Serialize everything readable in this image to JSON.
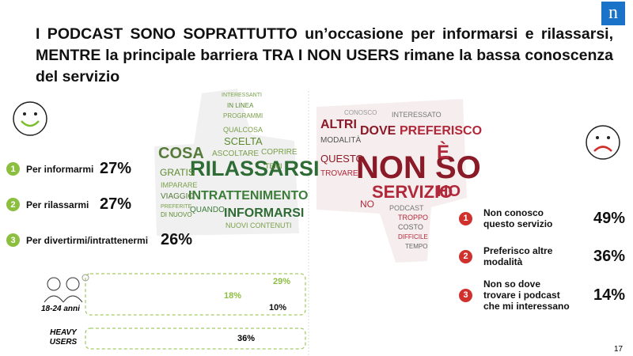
{
  "logo": "n",
  "title": "I PODCAST SONO SOPRATTUTTO un’occasione per informarsi e rilassarsi, MENTRE la principale barriera TRA I NON USERS rimane la bassa conoscenza del servizio",
  "reasons": [
    {
      "rank": "1",
      "label": "Per informarmi",
      "value": "27%"
    },
    {
      "rank": "2",
      "label": "Per rilassarmi",
      "value": "27%"
    },
    {
      "rank": "3",
      "label": "Per divertirmi/intrattenermi",
      "value": "26%"
    }
  ],
  "barriers": [
    {
      "rank": "1",
      "label": "Non conosco questo servizio",
      "value": "49%"
    },
    {
      "rank": "2",
      "label": "Preferisco altre modalità",
      "value": "36%"
    },
    {
      "rank": "3",
      "label": "Non so dove trovare i podcast che mi interessano",
      "value": "14%"
    }
  ],
  "age_box": {
    "label": "18-24 anni",
    "values": [
      "29%",
      "18%",
      "10%"
    ]
  },
  "heavy_box": {
    "label": "HEAVY USERS",
    "value": "36%"
  },
  "cloud_positive": [
    "RILASSARSI",
    "INTRATTENIMENTO",
    "INFORMARSI",
    "COSA",
    "GRATIS",
    "IMPARARE",
    "VIAGGIO",
    "PREFERITE",
    "DI NUOVO",
    "QUANDO",
    "NUOVI CONTENUTI",
    "SCELTA",
    "ASCOLTARE",
    "COPRIRE",
    "TEMI",
    "QUALCOSA",
    "IN LINEA",
    "PROGRAMMI",
    "INTERESSANTI"
  ],
  "cloud_negative": [
    "NON SO",
    "È",
    "SERVIZIO",
    "HO",
    "DOVE",
    "PREFERISCO",
    "ALTRI",
    "MODALITÀ",
    "QUESTO",
    "TROVARE",
    "INTERESSATO",
    "PODCAST",
    "TROPPO",
    "COSTO",
    "DIFFICILE",
    "TEMPO",
    "CONOSCO",
    "NO"
  ],
  "page_number": "17"
}
